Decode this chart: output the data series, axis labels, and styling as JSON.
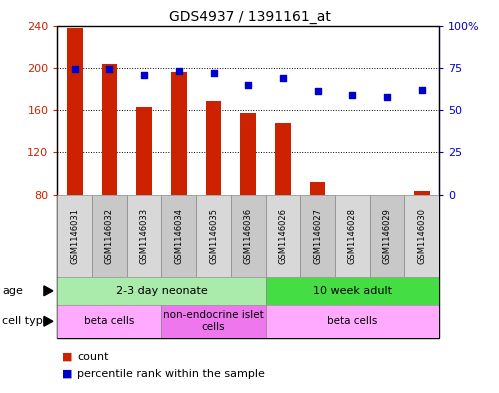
{
  "title": "GDS4937 / 1391161_at",
  "samples": [
    "GSM1146031",
    "GSM1146032",
    "GSM1146033",
    "GSM1146034",
    "GSM1146035",
    "GSM1146036",
    "GSM1146026",
    "GSM1146027",
    "GSM1146028",
    "GSM1146029",
    "GSM1146030"
  ],
  "counts": [
    238,
    204,
    163,
    196,
    169,
    157,
    148,
    92,
    78,
    76,
    83
  ],
  "percentiles": [
    74,
    74,
    71,
    73,
    72,
    65,
    69,
    61,
    59,
    58,
    62
  ],
  "ylim_left": [
    80,
    240
  ],
  "ylim_right": [
    0,
    100
  ],
  "yticks_left": [
    80,
    120,
    160,
    200,
    240
  ],
  "yticks_right": [
    0,
    25,
    50,
    75,
    100
  ],
  "ytick_labels_right": [
    "0",
    "25",
    "50",
    "75",
    "100%"
  ],
  "bar_color": "#cc2200",
  "dot_color": "#0000cc",
  "bar_width": 0.45,
  "age_groups": [
    {
      "label": "2-3 day neonate",
      "start": 0,
      "end": 6,
      "color": "#aaeaaa"
    },
    {
      "label": "10 week adult",
      "start": 6,
      "end": 11,
      "color": "#44dd44"
    }
  ],
  "cell_type_groups": [
    {
      "label": "beta cells",
      "start": 0,
      "end": 3,
      "color": "#ffaaff"
    },
    {
      "label": "non-endocrine islet\ncells",
      "start": 3,
      "end": 6,
      "color": "#ee77ee"
    },
    {
      "label": "beta cells",
      "start": 6,
      "end": 11,
      "color": "#ffaaff"
    }
  ],
  "tick_color_left": "#cc2200",
  "tick_color_right": "#0000cc",
  "background_color": "#ffffff",
  "grid_color": "#000000",
  "border_color": "#000000",
  "label_box_colors": [
    "#d8d8d8",
    "#c8c8c8"
  ]
}
